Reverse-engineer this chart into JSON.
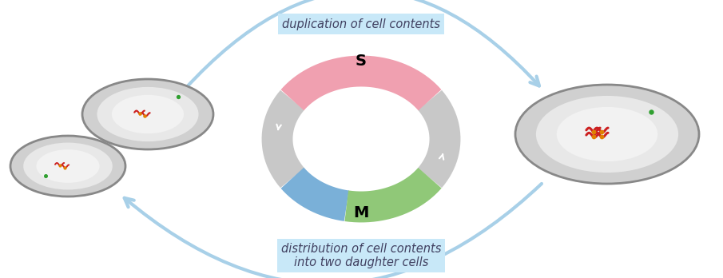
{
  "fig_width": 9.05,
  "fig_height": 3.48,
  "dpi": 100,
  "bg_color": "#ffffff",
  "S_phase_color": "#f0a0b0",
  "M_green_color": "#90c878",
  "M_blue_color": "#7ab0d8",
  "G_color": "#c8c8c8",
  "S_label": "S",
  "M_label": "M",
  "top_box_text": "duplication of cell contents",
  "bottom_box_text": "distribution of cell contents\ninto two daughter cells",
  "box_color": "#c8e8f8",
  "arrow_color": "#a8d0e8",
  "chrom_color": "#cc2020",
  "centromere_color": "#e08000",
  "dot_color": "#30a030",
  "cell_rim_color": "#888888",
  "cell_outer_fill": "#d0d0d0",
  "cell_mid_fill": "#e8e8e8",
  "cell_inner_fill": "#f2f2f2"
}
